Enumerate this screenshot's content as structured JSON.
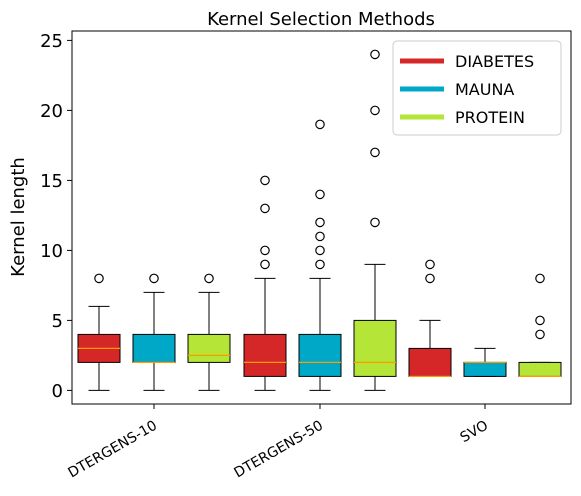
{
  "chart_data": {
    "type": "box",
    "title": "Kernel Selection Methods",
    "xlabel": "",
    "ylabel": "Kernel length",
    "ylim": [
      -1.2,
      25.5
    ],
    "yticks": [
      0,
      5,
      10,
      15,
      20,
      25
    ],
    "categories": [
      "DTERGENS-10",
      "DTERGENS-50",
      "SVO"
    ],
    "legend": {
      "placement": "top-right"
    },
    "grid": false,
    "colors": {
      "DIABETES": "#d62728",
      "MAUNA": "#00a8c8",
      "PROTEIN": "#b5e637",
      "median": "#ff9900"
    },
    "series": [
      {
        "name": "DIABETES",
        "boxes": [
          {
            "whisker_low": 0,
            "q1": 2,
            "median": 3,
            "q3": 4,
            "whisker_high": 6,
            "outliers": [
              8
            ]
          },
          {
            "whisker_low": 0,
            "q1": 1,
            "median": 2,
            "q3": 4,
            "whisker_high": 8,
            "outliers": [
              9,
              10,
              13,
              15
            ]
          },
          {
            "whisker_low": 1,
            "q1": 1,
            "median": 1,
            "q3": 3,
            "whisker_high": 5,
            "outliers": [
              8,
              9
            ]
          }
        ]
      },
      {
        "name": "MAUNA",
        "boxes": [
          {
            "whisker_low": 0,
            "q1": 2,
            "median": 2,
            "q3": 4,
            "whisker_high": 7,
            "outliers": [
              8
            ]
          },
          {
            "whisker_low": 0,
            "q1": 1,
            "median": 2,
            "q3": 4,
            "whisker_high": 8,
            "outliers": [
              9,
              10,
              11,
              12,
              14,
              19
            ]
          },
          {
            "whisker_low": 1,
            "q1": 1,
            "median": 2,
            "q3": 2,
            "whisker_high": 3,
            "outliers": []
          }
        ]
      },
      {
        "name": "PROTEIN",
        "boxes": [
          {
            "whisker_low": 0,
            "q1": 2,
            "median": 2.5,
            "q3": 4,
            "whisker_high": 7,
            "outliers": [
              8
            ]
          },
          {
            "whisker_low": 0,
            "q1": 1,
            "median": 2,
            "q3": 5,
            "whisker_high": 9,
            "outliers": [
              12,
              17,
              20,
              24
            ]
          },
          {
            "whisker_low": 1,
            "q1": 1,
            "median": 1,
            "q3": 2,
            "whisker_high": 2,
            "outliers": [
              4,
              5,
              8
            ]
          }
        ]
      }
    ]
  }
}
